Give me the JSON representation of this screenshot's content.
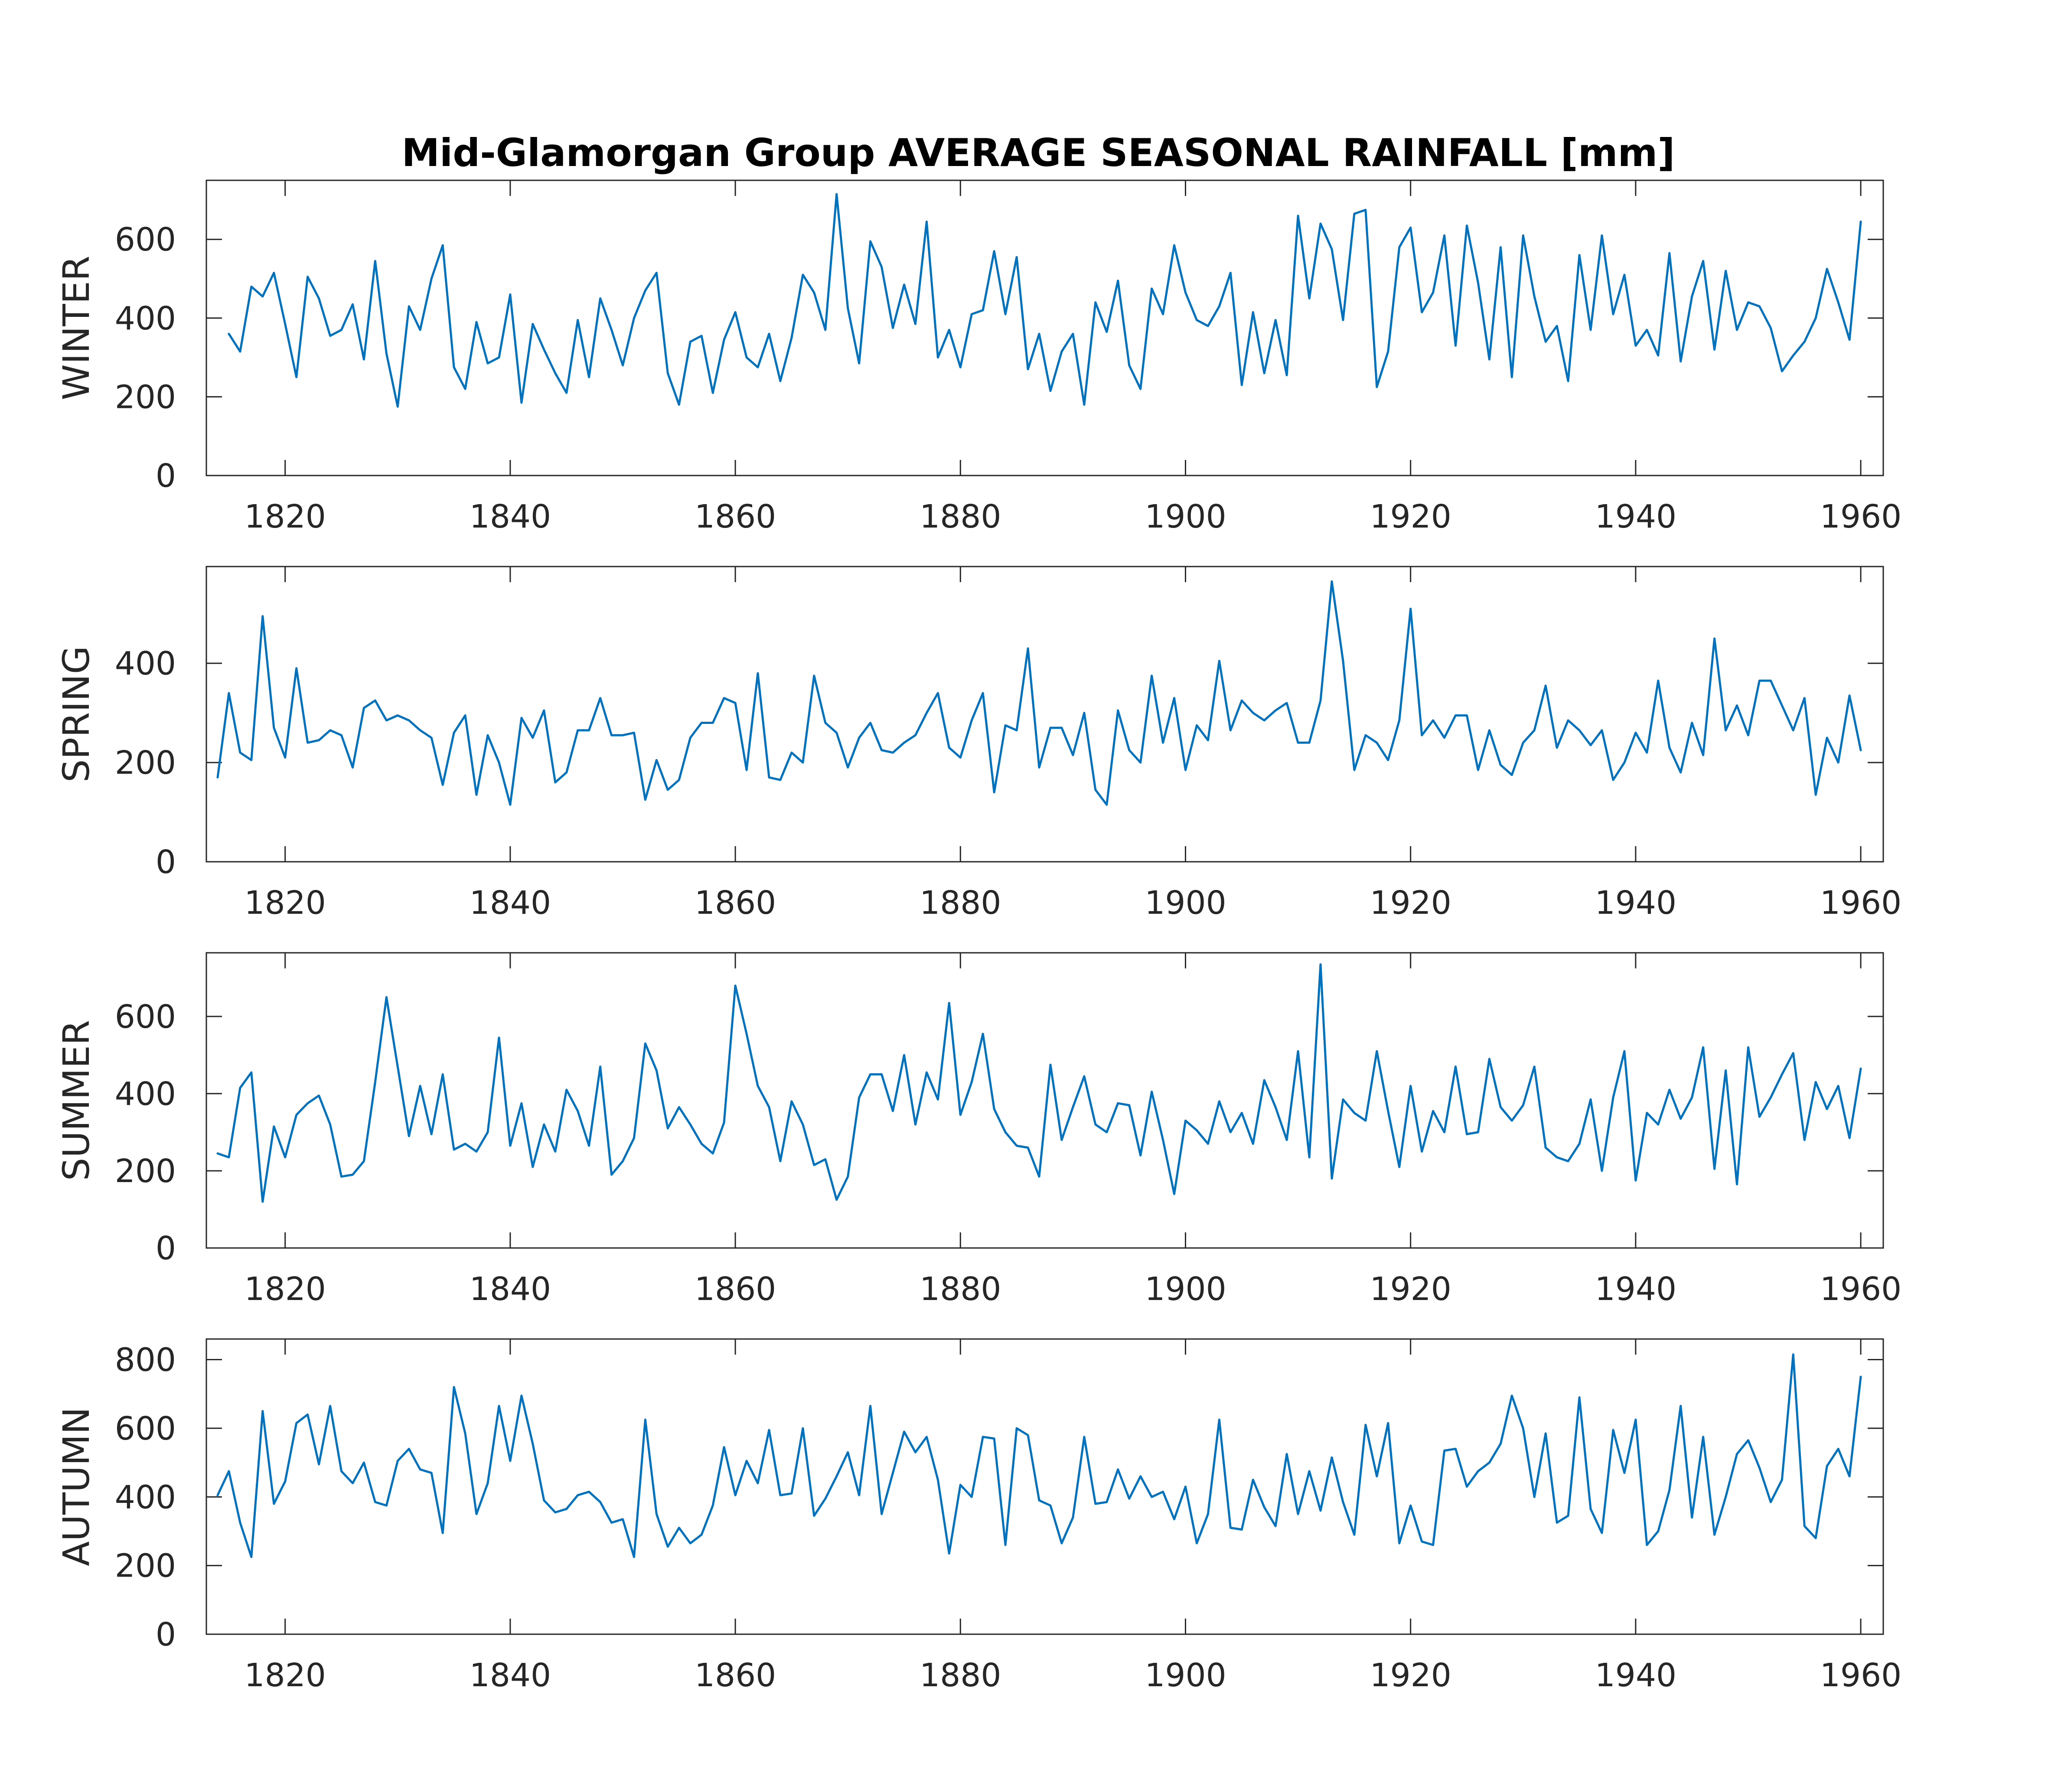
{
  "title": "Mid-Glamorgan Group AVERAGE SEASONAL RAINFALL [mm]",
  "colors": {
    "line": "#0072BD",
    "axis": "#262626"
  },
  "chart_data": [
    {
      "type": "line",
      "ylabel": "WINTER",
      "xlim": [
        1813,
        1962
      ],
      "ylim": [
        0,
        750
      ],
      "xticks": [
        1820,
        1840,
        1860,
        1880,
        1900,
        1920,
        1940,
        1960
      ],
      "yticks": [
        0,
        200,
        400,
        600
      ],
      "x_start": 1815,
      "values": [
        360,
        315,
        480,
        455,
        515,
        385,
        250,
        505,
        450,
        355,
        370,
        435,
        295,
        545,
        310,
        175,
        430,
        370,
        500,
        585,
        275,
        220,
        390,
        285,
        300,
        460,
        185,
        385,
        320,
        260,
        210,
        395,
        250,
        450,
        370,
        280,
        400,
        470,
        515,
        260,
        180,
        340,
        355,
        210,
        345,
        415,
        300,
        275,
        360,
        240,
        350,
        510,
        465,
        370,
        715,
        425,
        285,
        595,
        530,
        375,
        485,
        385,
        645,
        300,
        370,
        275,
        410,
        420,
        570,
        410,
        555,
        270,
        360,
        215,
        315,
        360,
        180,
        440,
        365,
        495,
        280,
        220,
        475,
        410,
        585,
        465,
        395,
        380,
        430,
        515,
        230,
        415,
        260,
        395,
        255,
        660,
        450,
        640,
        575,
        395,
        665,
        675,
        225,
        315,
        580,
        630,
        415,
        465,
        610,
        330,
        635,
        490,
        295,
        580,
        250,
        610,
        455,
        340,
        380,
        240,
        560,
        370,
        610,
        410,
        510,
        330,
        370,
        305,
        565,
        290,
        455,
        545,
        320,
        520,
        370,
        440,
        430,
        375,
        265,
        305,
        340,
        400,
        525,
        440,
        345,
        645
      ]
    },
    {
      "type": "line",
      "ylabel": "SPRING",
      "xlim": [
        1813,
        1962
      ],
      "ylim": [
        0,
        595
      ],
      "xticks": [
        1820,
        1840,
        1860,
        1880,
        1900,
        1920,
        1940,
        1960
      ],
      "yticks": [
        0,
        200,
        400
      ],
      "x_start": 1814,
      "values": [
        170,
        340,
        220,
        205,
        495,
        270,
        210,
        390,
        240,
        245,
        265,
        255,
        190,
        310,
        325,
        285,
        295,
        285,
        265,
        250,
        155,
        260,
        295,
        135,
        255,
        200,
        115,
        290,
        250,
        305,
        160,
        180,
        265,
        265,
        330,
        255,
        255,
        260,
        125,
        205,
        145,
        165,
        250,
        280,
        280,
        330,
        320,
        185,
        380,
        170,
        165,
        220,
        200,
        375,
        280,
        260,
        190,
        250,
        280,
        225,
        220,
        240,
        255,
        300,
        340,
        230,
        210,
        285,
        340,
        140,
        275,
        265,
        430,
        190,
        270,
        270,
        215,
        300,
        145,
        115,
        305,
        225,
        200,
        375,
        240,
        330,
        185,
        275,
        245,
        405,
        265,
        325,
        300,
        285,
        305,
        320,
        240,
        240,
        325,
        565,
        405,
        185,
        255,
        240,
        205,
        285,
        510,
        255,
        285,
        250,
        295,
        295,
        185,
        265,
        195,
        175,
        240,
        265,
        355,
        230,
        285,
        265,
        235,
        265,
        165,
        200,
        260,
        220,
        365,
        230,
        180,
        280,
        215,
        450,
        265,
        315,
        255,
        365,
        365,
        315,
        265,
        330,
        135,
        250,
        200,
        335,
        225
      ]
    },
    {
      "type": "line",
      "ylabel": "SUMMER",
      "xlim": [
        1813,
        1962
      ],
      "ylim": [
        0,
        765
      ],
      "xticks": [
        1820,
        1840,
        1860,
        1880,
        1900,
        1920,
        1940,
        1960
      ],
      "yticks": [
        0,
        200,
        400,
        600
      ],
      "x_start": 1814,
      "values": [
        245,
        235,
        415,
        455,
        120,
        315,
        235,
        345,
        375,
        395,
        320,
        185,
        190,
        225,
        430,
        650,
        470,
        290,
        420,
        295,
        450,
        255,
        270,
        250,
        300,
        545,
        265,
        375,
        210,
        320,
        250,
        410,
        355,
        265,
        470,
        190,
        225,
        285,
        530,
        460,
        310,
        365,
        320,
        270,
        245,
        325,
        680,
        555,
        420,
        365,
        225,
        380,
        320,
        215,
        230,
        125,
        185,
        390,
        450,
        450,
        355,
        500,
        320,
        455,
        385,
        635,
        345,
        430,
        555,
        360,
        300,
        265,
        260,
        185,
        475,
        280,
        365,
        445,
        320,
        300,
        375,
        370,
        240,
        405,
        280,
        140,
        330,
        305,
        270,
        380,
        300,
        350,
        270,
        435,
        365,
        280,
        510,
        235,
        735,
        180,
        385,
        350,
        330,
        510,
        355,
        210,
        420,
        250,
        355,
        300,
        470,
        295,
        300,
        490,
        365,
        330,
        370,
        470,
        260,
        235,
        225,
        270,
        385,
        200,
        390,
        510,
        175,
        350,
        320,
        410,
        335,
        390,
        520,
        205,
        460,
        165,
        520,
        340,
        390,
        450,
        505,
        280,
        430,
        360,
        420,
        285,
        465
      ]
    },
    {
      "type": "line",
      "ylabel": "AUTUMN",
      "xlim": [
        1813,
        1962
      ],
      "ylim": [
        0,
        860
      ],
      "xticks": [
        1820,
        1840,
        1860,
        1880,
        1900,
        1920,
        1940,
        1960
      ],
      "yticks": [
        0,
        200,
        400,
        600,
        800
      ],
      "x_start": 1814,
      "values": [
        405,
        475,
        325,
        225,
        650,
        380,
        445,
        615,
        640,
        495,
        665,
        475,
        440,
        500,
        385,
        375,
        505,
        540,
        480,
        470,
        295,
        720,
        585,
        350,
        440,
        665,
        505,
        695,
        555,
        390,
        355,
        365,
        405,
        415,
        385,
        325,
        335,
        225,
        625,
        350,
        255,
        310,
        265,
        290,
        375,
        545,
        405,
        505,
        440,
        595,
        405,
        410,
        600,
        345,
        395,
        460,
        530,
        405,
        665,
        350,
        470,
        590,
        530,
        575,
        450,
        235,
        435,
        400,
        575,
        570,
        260,
        600,
        580,
        390,
        375,
        265,
        340,
        575,
        380,
        385,
        480,
        395,
        460,
        400,
        415,
        335,
        430,
        265,
        350,
        625,
        310,
        305,
        450,
        370,
        315,
        525,
        350,
        475,
        360,
        515,
        385,
        290,
        610,
        460,
        615,
        265,
        375,
        270,
        260,
        535,
        540,
        430,
        475,
        500,
        555,
        695,
        600,
        400,
        585,
        325,
        345,
        690,
        365,
        295,
        595,
        470,
        625,
        260,
        300,
        420,
        665,
        340,
        575,
        290,
        400,
        525,
        565,
        485,
        385,
        450,
        815,
        315,
        280,
        490,
        540,
        460,
        750
      ]
    }
  ]
}
